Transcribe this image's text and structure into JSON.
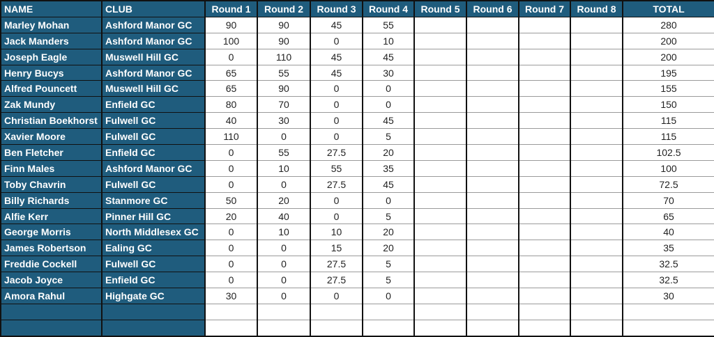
{
  "colors": {
    "header_bg": "#1f5c7d",
    "header_text": "#ffffff"
  },
  "columns": [
    "NAME",
    "CLUB",
    "Round 1",
    "Round 2",
    "Round 3",
    "Round 4",
    "Round 5",
    "Round 6",
    "Round 7",
    "Round 8",
    "TOTAL"
  ],
  "rows": [
    [
      "Marley Mohan",
      "Ashford Manor GC",
      "90",
      "90",
      "45",
      "55",
      "",
      "",
      "",
      "",
      "280"
    ],
    [
      "Jack Manders",
      "Ashford Manor GC",
      "100",
      "90",
      "0",
      "10",
      "",
      "",
      "",
      "",
      "200"
    ],
    [
      "Joseph Eagle",
      "Muswell Hill GC",
      "0",
      "110",
      "45",
      "45",
      "",
      "",
      "",
      "",
      "200"
    ],
    [
      "Henry Bucys",
      "Ashford Manor GC",
      "65",
      "55",
      "45",
      "30",
      "",
      "",
      "",
      "",
      "195"
    ],
    [
      "Alfred Pouncett",
      "Muswell Hill GC",
      "65",
      "90",
      "0",
      "0",
      "",
      "",
      "",
      "",
      "155"
    ],
    [
      "Zak Mundy",
      "Enfield GC",
      "80",
      "70",
      "0",
      "0",
      "",
      "",
      "",
      "",
      "150"
    ],
    [
      "Christian Boekhorst",
      "Fulwell GC",
      "40",
      "30",
      "0",
      "45",
      "",
      "",
      "",
      "",
      "115"
    ],
    [
      "Xavier Moore",
      "Fulwell GC",
      "110",
      "0",
      "0",
      "5",
      "",
      "",
      "",
      "",
      "115"
    ],
    [
      "Ben Fletcher",
      "Enfield GC",
      "0",
      "55",
      "27.5",
      "20",
      "",
      "",
      "",
      "",
      "102.5"
    ],
    [
      "Finn Males",
      "Ashford Manor GC",
      "0",
      "10",
      "55",
      "35",
      "",
      "",
      "",
      "",
      "100"
    ],
    [
      "Toby Chavrin",
      "Fulwell GC",
      "0",
      "0",
      "27.5",
      "45",
      "",
      "",
      "",
      "",
      "72.5"
    ],
    [
      "Billy Richards",
      "Stanmore GC",
      "50",
      "20",
      "0",
      "0",
      "",
      "",
      "",
      "",
      "70"
    ],
    [
      "Alfie Kerr",
      "Pinner Hill GC",
      "20",
      "40",
      "0",
      "5",
      "",
      "",
      "",
      "",
      "65"
    ],
    [
      "George Morris",
      "North Middlesex GC",
      "0",
      "10",
      "10",
      "20",
      "",
      "",
      "",
      "",
      "40"
    ],
    [
      "James Robertson",
      "Ealing GC",
      "0",
      "0",
      "15",
      "20",
      "",
      "",
      "",
      "",
      "35"
    ],
    [
      "Freddie Cockell",
      "Fulwell GC",
      "0",
      "0",
      "27.5",
      "5",
      "",
      "",
      "",
      "",
      "32.5"
    ],
    [
      "Jacob Joyce",
      "Enfield GC",
      "0",
      "0",
      "27.5",
      "5",
      "",
      "",
      "",
      "",
      "32.5"
    ],
    [
      "Amora Rahul",
      "Highgate GC",
      "30",
      "0",
      "0",
      "0",
      "",
      "",
      "",
      "",
      "30"
    ],
    [
      "",
      "",
      "",
      "",
      "",
      "",
      "",
      "",
      "",
      "",
      ""
    ],
    [
      "",
      "",
      "",
      "",
      "",
      "",
      "",
      "",
      "",
      "",
      ""
    ]
  ]
}
